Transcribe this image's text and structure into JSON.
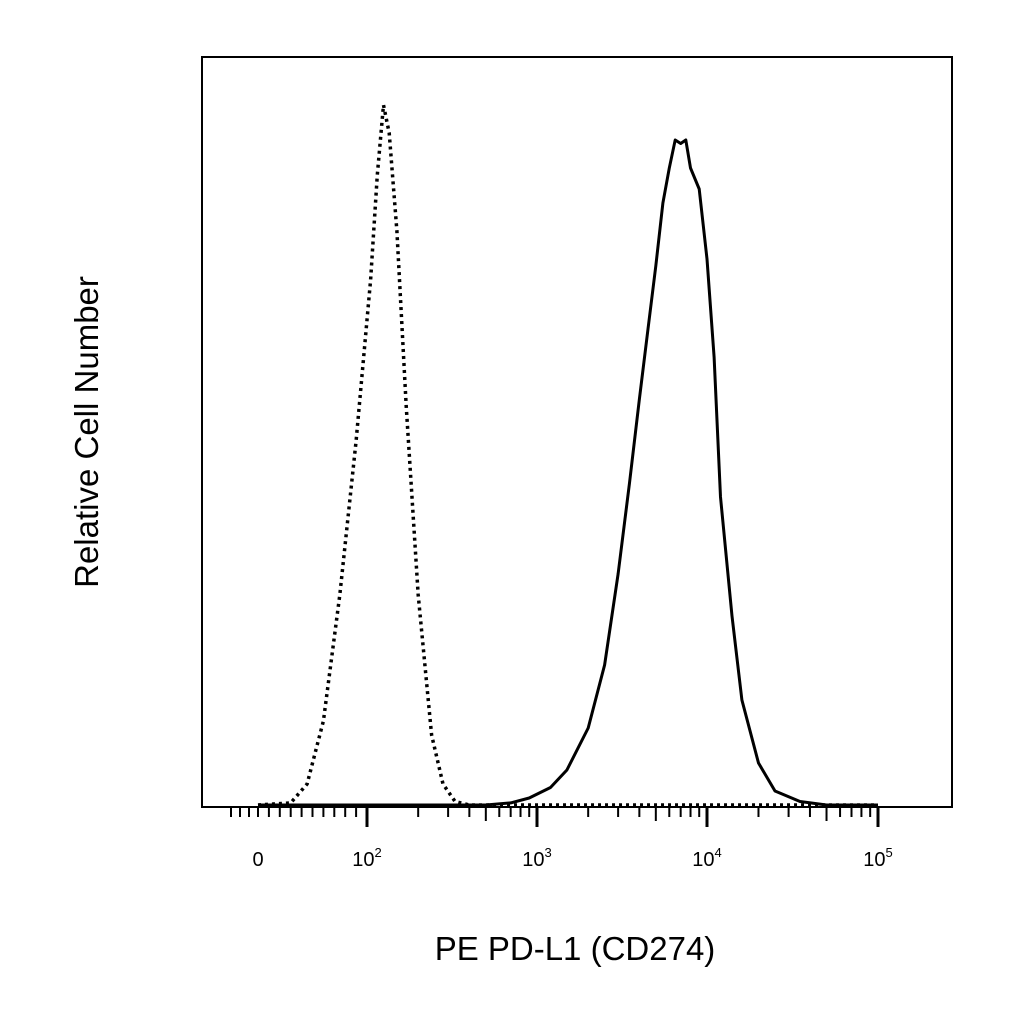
{
  "chart_data": {
    "type": "line",
    "title": "",
    "xlabel": "PE PD-L1 (CD274)",
    "ylabel": "Relative Cell Number",
    "x_scale": "biexponential",
    "x_ticks": [
      {
        "value": 0,
        "base": "0",
        "exp": ""
      },
      {
        "value": 100,
        "base": "10",
        "exp": "2"
      },
      {
        "value": 1000,
        "base": "10",
        "exp": "3"
      },
      {
        "value": 10000,
        "base": "10",
        "exp": "4"
      },
      {
        "value": 100000,
        "base": "10",
        "exp": "5"
      }
    ],
    "y_ticks": [],
    "grid": false,
    "legend": "none",
    "series": [
      {
        "style": "dotted",
        "color": "#000000",
        "x": [
          0,
          30,
          45,
          60,
          75,
          90,
          105,
          115,
          125,
          135,
          150,
          170,
          200,
          240,
          280,
          330,
          400,
          600,
          1000,
          100000
        ],
        "y": [
          0,
          0.3,
          3,
          12,
          30,
          52,
          75,
          90,
          100,
          96,
          82,
          57,
          30,
          10,
          3,
          0.5,
          0,
          0,
          0,
          0
        ]
      },
      {
        "style": "solid",
        "color": "#000000",
        "x": [
          0,
          500,
          700,
          900,
          1200,
          1500,
          2000,
          2500,
          3000,
          3500,
          4000,
          4500,
          5000,
          5500,
          6000,
          6500,
          7000,
          7500,
          8000,
          9000,
          10000,
          11000,
          12000,
          14000,
          16000,
          20000,
          25000,
          35000,
          50000,
          100000
        ],
        "y": [
          0,
          0,
          0.3,
          1,
          2.5,
          5,
          11,
          20,
          33,
          46,
          58,
          68,
          77,
          86,
          91,
          95,
          94.5,
          95,
          91,
          88,
          78,
          64,
          44,
          27,
          15,
          6,
          2,
          0.5,
          0,
          0
        ]
      }
    ]
  }
}
